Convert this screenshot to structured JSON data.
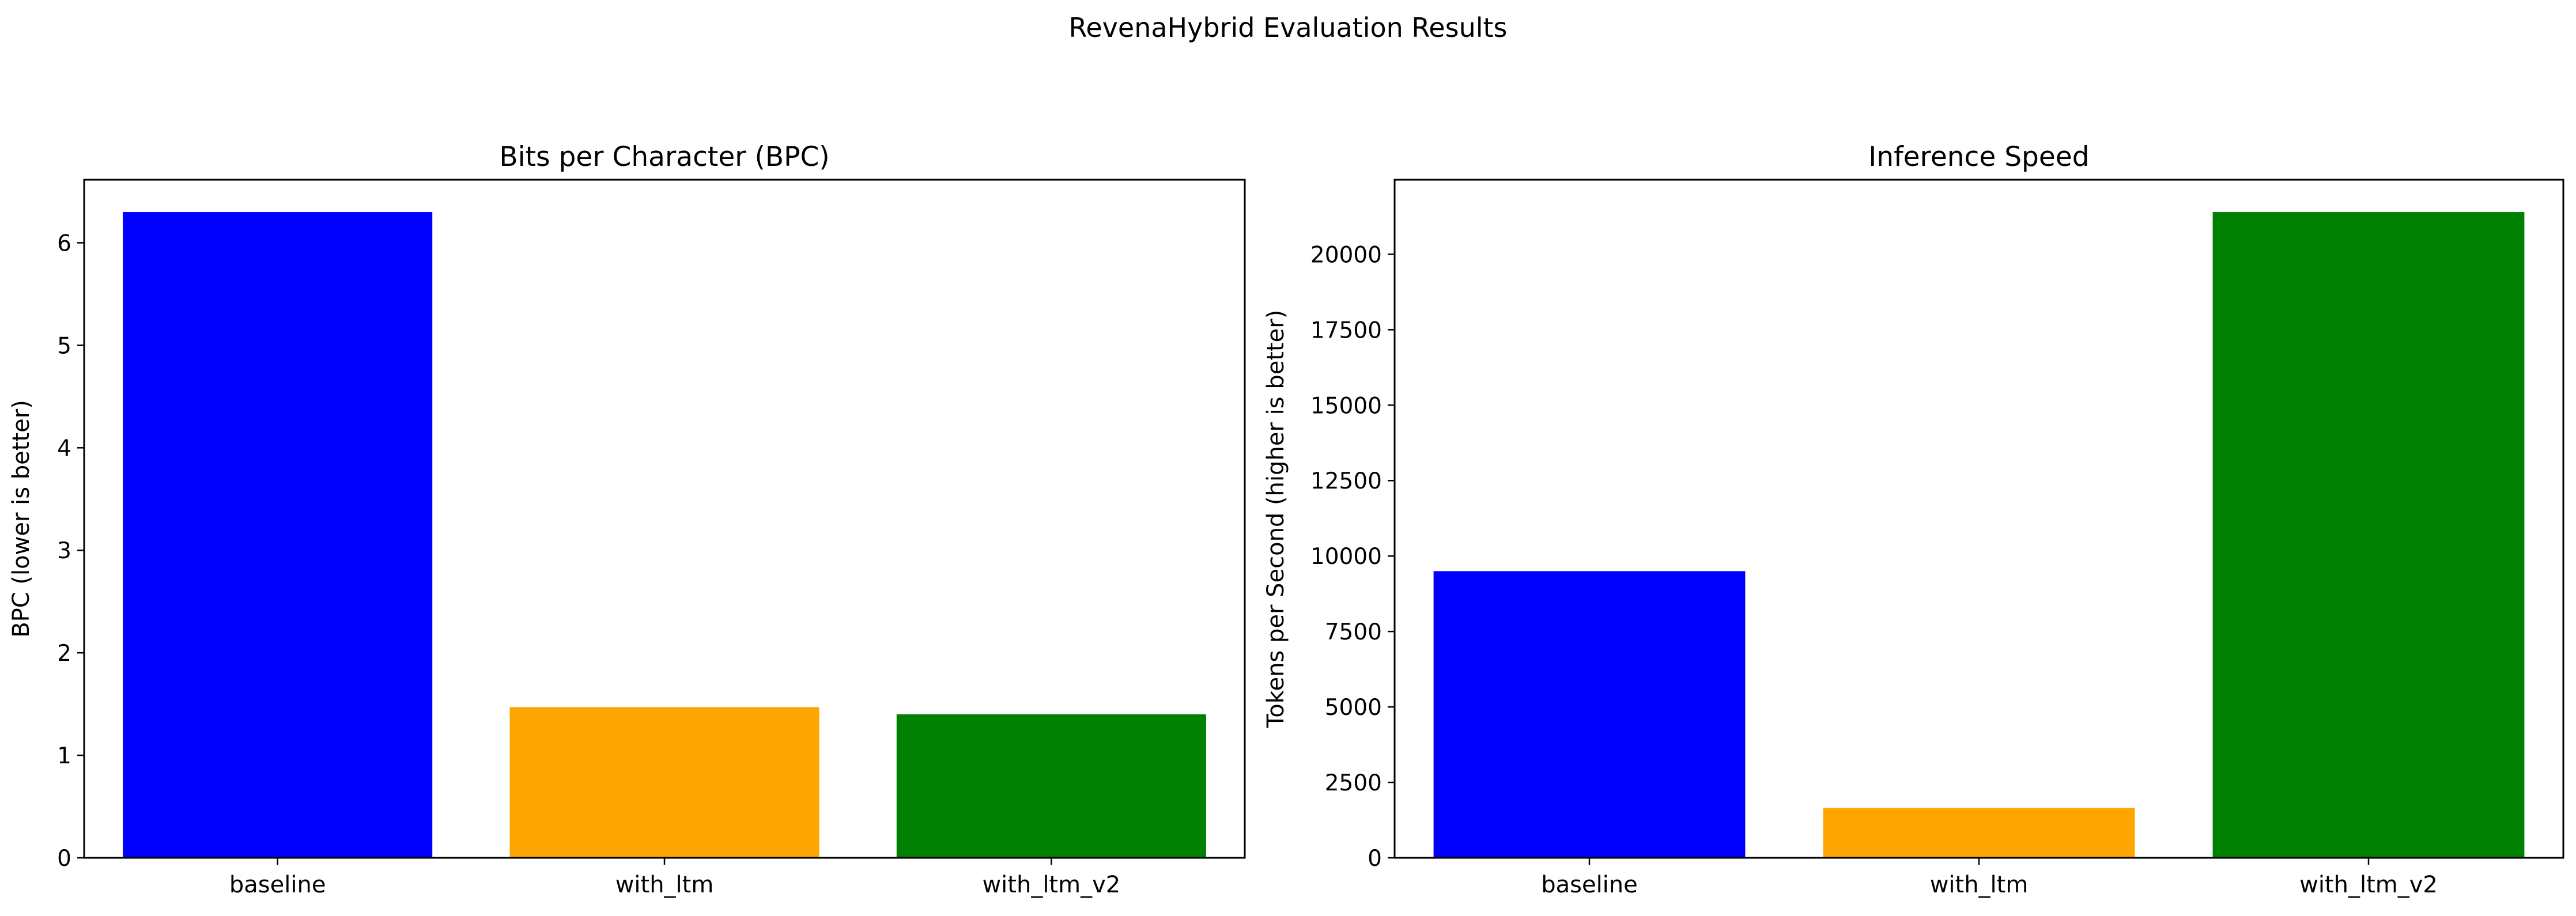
{
  "suptitle": "RevenaHybrid Evaluation Results",
  "chart_data": [
    {
      "type": "bar",
      "title": "Bits per Character (BPC)",
      "xlabel": "",
      "ylabel": "BPC (lower is better)",
      "categories": [
        "baseline",
        "with_ltm",
        "with_ltm_v2"
      ],
      "values": [
        6.3,
        1.47,
        1.4
      ],
      "colors": [
        "#0000ff",
        "#ffa500",
        "#008000"
      ],
      "ylim": [
        0,
        6.615
      ],
      "yticks": [
        0,
        1,
        2,
        3,
        4,
        5,
        6
      ],
      "ytick_labels": [
        "0",
        "1",
        "2",
        "3",
        "4",
        "5",
        "6"
      ],
      "grid": false,
      "legend": "none"
    },
    {
      "type": "bar",
      "title": "Inference Speed",
      "xlabel": "",
      "ylabel": "Tokens per Second (higher is better)",
      "categories": [
        "baseline",
        "with_ltm",
        "with_ltm_v2"
      ],
      "values": [
        9500,
        1650,
        21400
      ],
      "colors": [
        "#0000ff",
        "#ffa500",
        "#008000"
      ],
      "ylim": [
        0,
        22470
      ],
      "yticks": [
        0,
        2500,
        5000,
        7500,
        10000,
        12500,
        15000,
        17500,
        20000
      ],
      "ytick_labels": [
        "0",
        "2500",
        "5000",
        "7500",
        "10000",
        "12500",
        "15000",
        "17500",
        "20000"
      ],
      "grid": false,
      "legend": "none"
    }
  ]
}
